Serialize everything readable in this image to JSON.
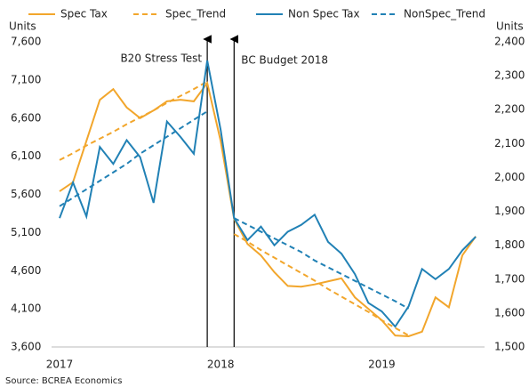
{
  "chart_data": {
    "type": "line",
    "y_label": "Units",
    "y2_label": "Units",
    "source": "Source: BCREA Economics",
    "annotations": [
      "B20 Stress Test",
      "BC Budget 2018"
    ],
    "categories": [
      "2017",
      null,
      null,
      null,
      null,
      null,
      null,
      null,
      null,
      null,
      null,
      null,
      "2018",
      null,
      null,
      null,
      null,
      null,
      null,
      null,
      null,
      null,
      null,
      null,
      "2019",
      null,
      null,
      null,
      null,
      null,
      null,
      null
    ],
    "ylim": [
      3600,
      7600
    ],
    "yticks": [
      {
        "value": 3600,
        "label": "3,600"
      },
      {
        "value": 4100,
        "label": "4,100"
      },
      {
        "value": 4600,
        "label": "4,600"
      },
      {
        "value": 5100,
        "label": "5,100"
      },
      {
        "value": 5600,
        "label": "5,600"
      },
      {
        "value": 6100,
        "label": "6,100"
      },
      {
        "value": 6600,
        "label": "6,600"
      },
      {
        "value": 7100,
        "label": "7,100"
      },
      {
        "value": 7600,
        "label": "7,600"
      }
    ],
    "y2lim": [
      1500,
      2400
    ],
    "y2ticks": [
      {
        "value": 1500,
        "label": "1,500"
      },
      {
        "value": 1600,
        "label": "1,600"
      },
      {
        "value": 1700,
        "label": "1,700"
      },
      {
        "value": 1800,
        "label": "1,800"
      },
      {
        "value": 1900,
        "label": "1,900"
      },
      {
        "value": 2000,
        "label": "2,000"
      },
      {
        "value": 2100,
        "label": "2,100"
      },
      {
        "value": 2200,
        "label": "2,200"
      },
      {
        "value": 2300,
        "label": "2,300"
      },
      {
        "value": 2400,
        "label": "2,400"
      }
    ],
    "grid": false,
    "series": [
      {
        "name": "Spec Tax",
        "color": "#f2a62c",
        "linestyle": "solid",
        "axis": "y",
        "values": [
          5640,
          5760,
          6300,
          6840,
          6980,
          6740,
          6600,
          6700,
          6820,
          6840,
          6820,
          7060,
          6300,
          5280,
          4950,
          4800,
          4580,
          4400,
          4390,
          4420,
          4460,
          4500,
          4250,
          4100,
          3950,
          3750,
          3740,
          3800,
          4250,
          4120,
          4800,
          5050
        ]
      },
      {
        "name": "Spec_Trend",
        "color": "#f2a62c",
        "linestyle": "dashed",
        "axis": "y",
        "values": [
          6050,
          6140,
          6240,
          6330,
          6420,
          6520,
          6610,
          6700,
          6800,
          6890,
          6980,
          7080,
          null,
          5080,
          4980,
          4870,
          4770,
          4670,
          4570,
          4470,
          4360,
          4260,
          4160,
          4060,
          3950,
          3850,
          3750,
          null,
          null,
          null,
          null,
          null
        ]
      },
      {
        "name": "Non Spec Tax",
        "color": "#2181b5",
        "linestyle": "solid",
        "axis": "y2",
        "values": [
          1880,
          1985,
          1885,
          2090,
          2040,
          2110,
          2060,
          1925,
          2165,
          2120,
          2070,
          2345,
          2140,
          1880,
          1815,
          1855,
          1800,
          1840,
          1860,
          1890,
          1810,
          1775,
          1715,
          1630,
          1605,
          1560,
          1620,
          1730,
          1700,
          1730,
          1785,
          1825
        ]
      },
      {
        "name": "NonSpec_Trend",
        "color": "#2181b5",
        "linestyle": "dashed",
        "axis": "y2",
        "values": [
          1915,
          1940,
          1965,
          1990,
          2015,
          2040,
          2070,
          2095,
          2120,
          2145,
          2170,
          2195,
          null,
          1880,
          1860,
          1840,
          1820,
          1800,
          1780,
          1755,
          1735,
          1715,
          1695,
          1675,
          1655,
          1635,
          1613,
          null,
          null,
          null,
          null,
          null
        ]
      }
    ]
  }
}
